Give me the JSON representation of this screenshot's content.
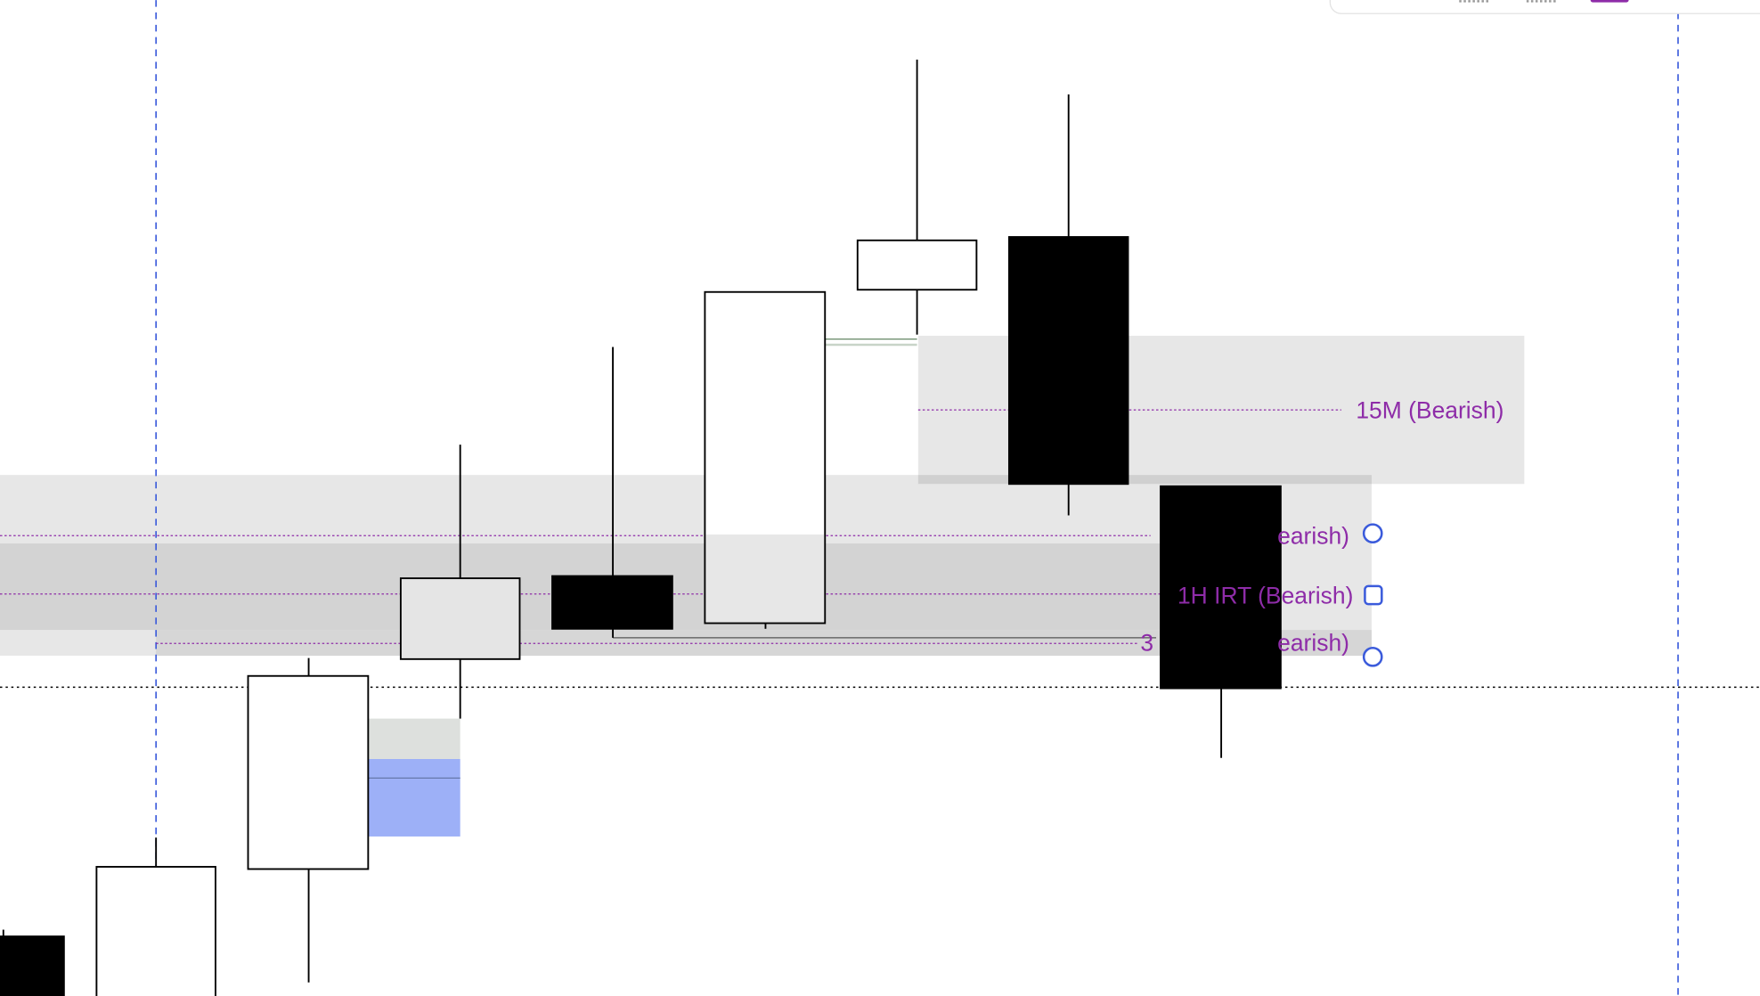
{
  "zone_labels": [
    "15M (Bearish)",
    "earish)",
    "1H IRT (Bearish)",
    "3",
    "earish)"
  ]
}
